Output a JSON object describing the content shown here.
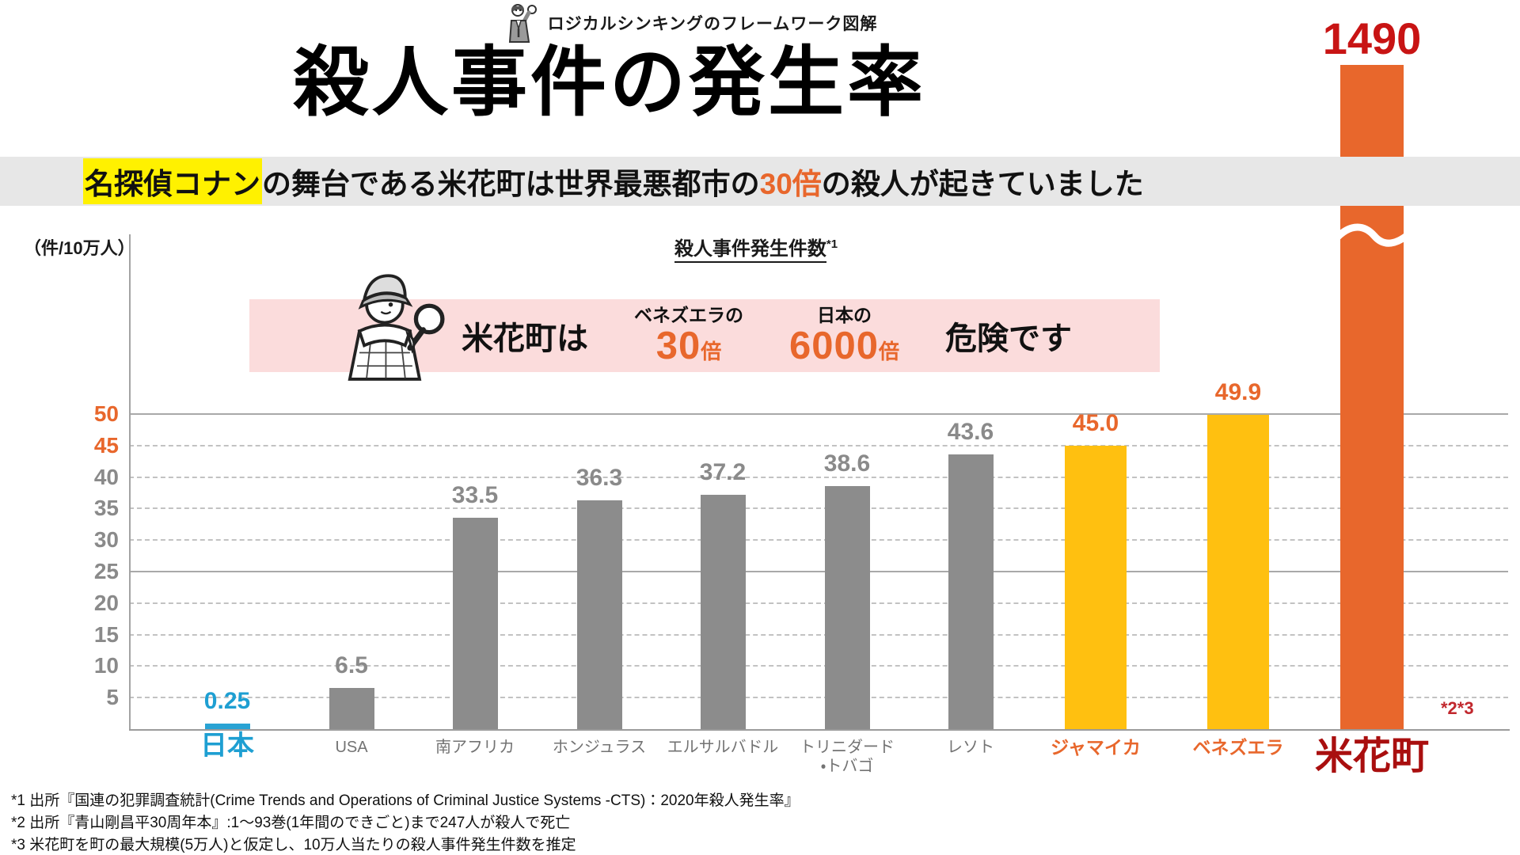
{
  "header": {
    "tagline": "ロジカルシンキングのフレームワーク図解",
    "title": "殺人事件の発生率"
  },
  "subtitle": {
    "highlight": "名探偵コナン",
    "pre": "の舞台である米花町は世界最悪都市の",
    "multiplier": "30倍",
    "post": "の殺人が起きていました"
  },
  "callout": {
    "lead": "米花町は",
    "comparisons": [
      {
        "top": "ベネズエラの",
        "big": "30",
        "suffix": "倍"
      },
      {
        "top": "日本の",
        "big": "6000",
        "suffix": "倍"
      }
    ],
    "tail": "危険です"
  },
  "colors": {
    "accent_orange": "#E8672C",
    "bar_gray": "#8C8C8C",
    "bar_yellow": "#FFC010",
    "bar_blue": "#29A3D4",
    "bar_orange": "#E8672C",
    "value_red": "#C81414",
    "beika_label_red": "#A90F0F",
    "note_red": "#C1272D",
    "highlight_yellow": "#FFF100",
    "band_gray": "#E7E7E7",
    "callout_pink": "#FBDCDC"
  },
  "chart_data": {
    "type": "bar",
    "title": "殺人事件発生件数",
    "title_note": "*1",
    "unit_label": "（件/10万人）",
    "ylabel": "件/10万人",
    "ylim": [
      0,
      50
    ],
    "yticks": [
      5,
      10,
      15,
      20,
      25,
      30,
      35,
      40,
      45,
      50
    ],
    "solid_gridlines": [
      25,
      50
    ],
    "orange_ticks": [
      45,
      50
    ],
    "grid": "horizontal-dashed",
    "legend": "none",
    "categories": [
      "日本",
      "USA",
      "南アフリカ",
      "ホンジュラス",
      "エルサルバドル",
      "トリニダード・トバゴ",
      "レソト",
      "ジャマイカ",
      "ベネズエラ",
      "米花町"
    ],
    "values": [
      0.25,
      6.5,
      33.5,
      36.3,
      37.2,
      38.6,
      43.6,
      45.0,
      49.9,
      1490
    ],
    "bars": [
      {
        "label": "日本",
        "value": 0.25,
        "value_label": "0.25",
        "color": "blue"
      },
      {
        "label": "USA",
        "value": 6.5,
        "value_label": "6.5",
        "color": "gray"
      },
      {
        "label": "南アフリカ",
        "value": 33.5,
        "value_label": "33.5",
        "color": "gray"
      },
      {
        "label": "ホンジュラス",
        "value": 36.3,
        "value_label": "36.3",
        "color": "gray"
      },
      {
        "label": "エルサルバドル",
        "value": 37.2,
        "value_label": "37.2",
        "color": "gray"
      },
      {
        "label": "トリニダード\n・トバゴ",
        "value": 38.6,
        "value_label": "38.6",
        "color": "gray"
      },
      {
        "label": "レソト",
        "value": 43.6,
        "value_label": "43.6",
        "color": "gray"
      },
      {
        "label": "ジャマイカ",
        "value": 45.0,
        "value_label": "45.0",
        "color": "yellow"
      },
      {
        "label": "ベネズエラ",
        "value": 49.9,
        "value_label": "49.9",
        "color": "yellow"
      },
      {
        "label": "米花町",
        "value": 1490,
        "value_label": "1490",
        "color": "orange",
        "broken": true,
        "label_note": "*2*3"
      }
    ]
  },
  "footnotes": [
    "*1 出所『国連の犯罪調査統計(Crime Trends and Operations of Criminal Justice Systems -CTS)：2020年殺人発生率』",
    "*2 出所『青山剛昌平30周年本』:1～93巻(1年間のできごと)まで247人が殺人で死亡",
    "*3 米花町を町の最大規模(5万人)と仮定し、10万人当たりの殺人事件発生件数を推定"
  ]
}
